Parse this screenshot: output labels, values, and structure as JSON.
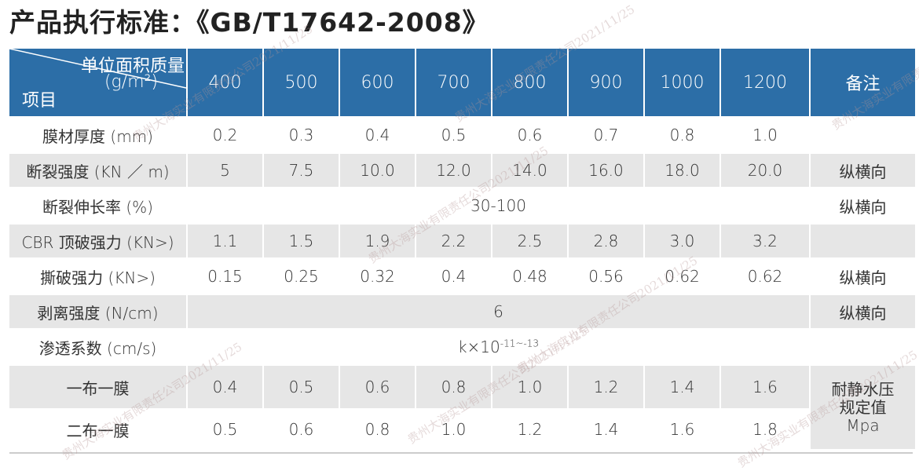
{
  "title": "产品执行标准：《GB/T17642-2008》",
  "table": {
    "corner": {
      "unit_label": "单位面积质量",
      "unit": "(g/m²)",
      "item_label": "项目"
    },
    "columns": [
      "400",
      "500",
      "600",
      "700",
      "800",
      "900",
      "1000",
      "1200"
    ],
    "note_header": "备注",
    "rows": [
      {
        "label": "膜材厚度 (mm)",
        "values": [
          "0.2",
          "0.3",
          "0.4",
          "0.5",
          "0.6",
          "0.7",
          "0.8",
          "1.0"
        ]
      },
      {
        "label": "断裂强度 (KN ／ m)",
        "values": [
          "5",
          "7.5",
          "10.0",
          "12.0",
          "14.0",
          "16.0",
          "18.0",
          "20.0"
        ],
        "note": "纵横向"
      },
      {
        "label": "断裂伸长率 (%)",
        "merged": "30-100",
        "note": "纵横向"
      },
      {
        "label": "CBR 顶破强力 (KN>)",
        "values": [
          "1.1",
          "1.5",
          "1.9",
          "2.2",
          "2.5",
          "2.8",
          "3.0",
          "3.2"
        ]
      },
      {
        "label": "撕破强力 (KN>)",
        "values": [
          "0.15",
          "0.25",
          "0.32",
          "0.4",
          "0.48",
          "0.56",
          "0.62",
          "0.62"
        ],
        "note": "纵横向"
      },
      {
        "label": "剥离强度 (N/cm)",
        "merged": "6",
        "note": "纵横向"
      },
      {
        "label": "渗透系数 (cm/s)",
        "merged": "k×10",
        "merged_exp": "-11~-13"
      },
      {
        "label": "一布一膜",
        "values": [
          "0.4",
          "0.5",
          "0.6",
          "0.8",
          "1.0",
          "1.2",
          "1.4",
          "1.6"
        ]
      },
      {
        "label": "二布一膜",
        "values": [
          "0.5",
          "0.6",
          "0.8",
          "1.0",
          "1.2",
          "1.4",
          "1.6",
          "1.8"
        ]
      }
    ],
    "pressure_note": [
      "耐静水压",
      "规定值",
      "Mpa"
    ]
  },
  "watermark": "贵州大海实业有限责任公司2021/11/25"
}
